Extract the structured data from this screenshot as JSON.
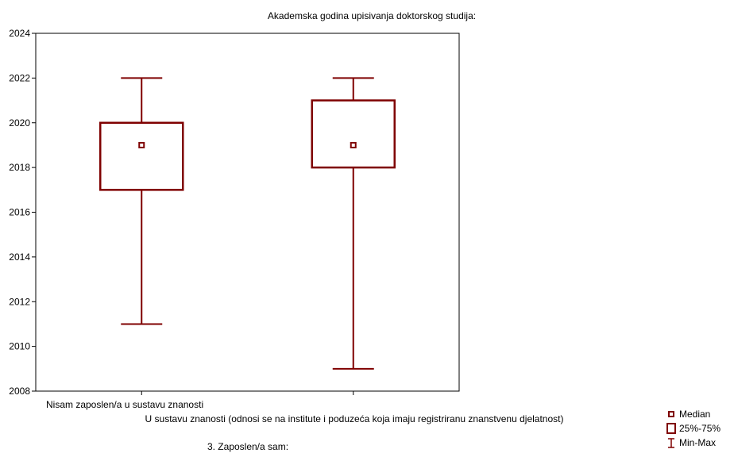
{
  "chart_data": {
    "type": "boxplot",
    "title": "Akademska godina upisivanja doktorskog studija:",
    "xlabel": "3. Zaposlen/a sam:",
    "ylabel": "",
    "ylim": [
      2008,
      2024
    ],
    "yticks": [
      2008,
      2010,
      2012,
      2014,
      2016,
      2018,
      2020,
      2022,
      2024
    ],
    "categories": [
      "Nisam zaposlen/a u sustavu znanosti",
      "U sustavu znanosti (odnosi se na institute i poduzeća koja imaju registriranu znanstvenu djelatnost)"
    ],
    "boxes": [
      {
        "min": 2011,
        "q1": 2017,
        "median": 2019,
        "q3": 2020,
        "max": 2022
      },
      {
        "min": 2009,
        "q1": 2018,
        "median": 2019,
        "q3": 2021,
        "max": 2022
      }
    ],
    "color": "#7f0000",
    "legend": {
      "position": "bottom-right",
      "items": [
        "Median",
        "25%-75%",
        "Min-Max"
      ]
    }
  }
}
